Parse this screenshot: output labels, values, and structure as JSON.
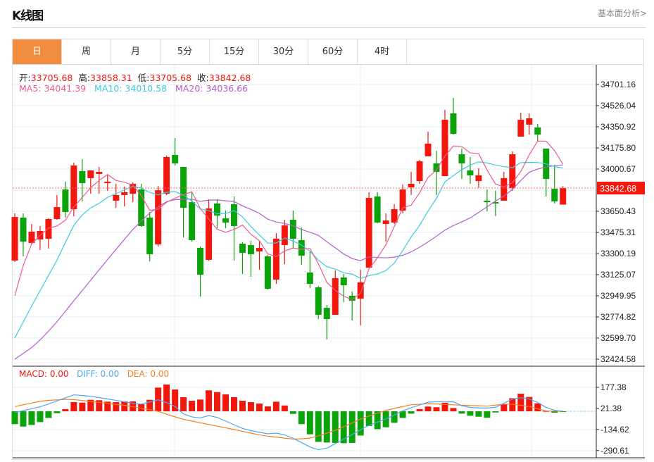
{
  "header": {
    "title": "K线图",
    "link": "基本面分析>"
  },
  "tabs": [
    "日",
    "周",
    "月",
    "5分",
    "15分",
    "30分",
    "60分",
    "4时"
  ],
  "active_tab": 0,
  "legend": {
    "open_label": "开:",
    "open": "33705.68",
    "high_label": "高:",
    "high": "33858.31",
    "low_label": "低:",
    "low": "33705.68",
    "close_label": "收:",
    "close": "33842.68",
    "ma5": "MA5: 34041.39",
    "ma10": "MA10: 34010.58",
    "ma20": "MA20: 34036.66",
    "macd": "MACD: 0.00",
    "diff": "DIFF: 0.00",
    "dea": "DEA: 0.00"
  },
  "colors": {
    "up": "#f2160c",
    "down": "#0aa30a",
    "ma5": "#ef5a8d",
    "ma10": "#3fc9e0",
    "ma20": "#b35fc9",
    "diff": "#4ea5ef",
    "dea": "#f57f1f",
    "accent": "#f28c3f"
  },
  "chart_data": [
    {
      "type": "candlestick",
      "title": "K线图",
      "current_price": "33842.68",
      "y_ticks": [
        "34701.16",
        "34526.04",
        "34350.92",
        "34175.80",
        "34000.67",
        "33650.43",
        "33475.31",
        "33300.19",
        "33125.07",
        "32949.95",
        "32774.82",
        "32599.70",
        "32424.58"
      ],
      "ylim": [
        32424.58,
        34701.16
      ],
      "ohlc": [
        [
          33242,
          33633,
          33230,
          33603
        ],
        [
          33598,
          33633,
          33277,
          33399
        ],
        [
          33388,
          33545,
          33376,
          33481
        ],
        [
          33417,
          33528,
          33329,
          33487
        ],
        [
          33423,
          33592,
          33341,
          33586
        ],
        [
          33586,
          33784,
          33580,
          33685
        ],
        [
          33831,
          33896,
          33598,
          33644
        ],
        [
          33668,
          34053,
          33609,
          34030
        ],
        [
          33983,
          34082,
          33732,
          33884
        ],
        [
          33925,
          33989,
          33796,
          33989
        ],
        [
          33960,
          34018,
          33796,
          33977
        ],
        [
          33884,
          33954,
          33820,
          33896
        ],
        [
          33738,
          33878,
          33679,
          33785
        ],
        [
          33785,
          33855,
          33691,
          33808
        ],
        [
          33796,
          33890,
          33726,
          33878
        ],
        [
          33831,
          33878,
          33522,
          33528
        ],
        [
          33598,
          33644,
          33236,
          33294
        ],
        [
          33376,
          33860,
          33358,
          33825
        ],
        [
          33796,
          34112,
          33784,
          34100
        ],
        [
          34117,
          34257,
          34030,
          34047
        ],
        [
          34018,
          34018,
          33434,
          33679
        ],
        [
          33726,
          33808,
          33399,
          33411
        ],
        [
          33347,
          33358,
          32944,
          33125
        ],
        [
          33248,
          33750,
          33240,
          33674
        ],
        [
          33715,
          33750,
          33510,
          33615
        ],
        [
          33592,
          33656,
          33510,
          33557
        ],
        [
          33709,
          33773,
          33242,
          33528
        ],
        [
          33382,
          33393,
          33131,
          33306
        ],
        [
          33370,
          33405,
          33107,
          33294
        ],
        [
          33317,
          33405,
          33166,
          33347
        ],
        [
          33277,
          33288,
          33002,
          33008
        ],
        [
          33084,
          33469,
          33049,
          33423
        ],
        [
          33370,
          33580,
          33212,
          33533
        ],
        [
          33580,
          33656,
          33341,
          33423
        ],
        [
          33411,
          33516,
          33206,
          33283
        ],
        [
          33143,
          33317,
          33014,
          33049
        ],
        [
          33020,
          33032,
          32757,
          32792
        ],
        [
          32850,
          32874,
          32588,
          32757
        ],
        [
          32792,
          33160,
          32792,
          33096
        ],
        [
          33102,
          33131,
          32897,
          33037
        ],
        [
          32950,
          32985,
          32746,
          32909
        ],
        [
          32926,
          33166,
          32705,
          33061
        ],
        [
          33183,
          33808,
          33183,
          33761
        ],
        [
          33773,
          33808,
          33551,
          33557
        ],
        [
          33545,
          33633,
          33399,
          33574
        ],
        [
          33557,
          33709,
          33545,
          33668
        ],
        [
          33656,
          33872,
          33633,
          33831
        ],
        [
          33849,
          33977,
          33785,
          33878
        ],
        [
          33901,
          34076,
          33878,
          34065
        ],
        [
          34106,
          34310,
          34106,
          34211
        ],
        [
          34047,
          34152,
          33785,
          33977
        ],
        [
          33942,
          34491,
          33942,
          34409
        ],
        [
          34462,
          34590,
          34286,
          34292
        ],
        [
          34123,
          34170,
          33919,
          34047
        ],
        [
          33989,
          34100,
          33878,
          33948
        ],
        [
          33901,
          34006,
          33843,
          33948
        ],
        [
          33738,
          33831,
          33650,
          33726
        ],
        [
          33726,
          33820,
          33610,
          33715
        ],
        [
          33738,
          33977,
          33738,
          33925
        ],
        [
          33843,
          34147,
          33820,
          34123
        ],
        [
          34269,
          34468,
          34269,
          34409
        ],
        [
          34368,
          34462,
          34286,
          34421
        ],
        [
          34345,
          34374,
          34234,
          34286
        ],
        [
          34170,
          34170,
          33773,
          33919
        ],
        [
          33837,
          34035,
          33715,
          33732
        ],
        [
          33705.68,
          33858.31,
          33705.68,
          33842.68
        ]
      ],
      "ma_lead_in": {
        "ma5": [
          [
            0,
            32950
          ],
          [
            1,
            33200
          ],
          [
            2,
            33380
          ],
          [
            3,
            33450
          ]
        ],
        "ma10": [
          [
            0,
            32600
          ],
          [
            2.2,
            32891
          ],
          [
            5.3,
            33283
          ],
          [
            6.8,
            33516
          ],
          [
            8,
            33620
          ]
        ],
        "ma20": [
          [
            0,
            32424
          ],
          [
            2.4,
            32540
          ],
          [
            4.6,
            32700
          ],
          [
            6.8,
            32891
          ],
          [
            10.9,
            33242
          ],
          [
            13.9,
            33493
          ],
          [
            16.2,
            33650
          ],
          [
            18,
            33730
          ]
        ]
      }
    },
    {
      "type": "macd",
      "y_ticks": [
        "177.38",
        "21.38",
        "-134.62",
        "-290.61"
      ],
      "histogram": [
        -95,
        -113,
        -101,
        -80,
        -49,
        -14,
        16,
        68,
        64,
        85,
        82,
        71,
        68,
        73,
        73,
        52,
        85,
        175,
        198,
        161,
        104,
        78,
        87,
        155,
        142,
        125,
        104,
        78,
        68,
        57,
        36,
        71,
        43,
        -19,
        -95,
        -170,
        -226,
        -231,
        -234,
        -236,
        -234,
        -179,
        -109,
        -132,
        -118,
        -85,
        -49,
        -17,
        16,
        35,
        30,
        63,
        24,
        -17,
        -33,
        -40,
        -47,
        -9,
        54,
        97,
        130,
        106,
        59,
        2,
        -10,
        -3
      ],
      "diff": [
        [
          0,
          -10
        ],
        [
          3.3,
          38
        ],
        [
          7,
          122
        ],
        [
          9,
          111
        ],
        [
          12.3,
          78
        ],
        [
          14.8,
          50
        ],
        [
          17,
          85
        ],
        [
          18.8,
          47
        ],
        [
          20.3,
          -36
        ],
        [
          22,
          -49
        ],
        [
          23.3,
          -26
        ],
        [
          27.3,
          -135
        ],
        [
          30.3,
          -170
        ],
        [
          31.3,
          -158
        ],
        [
          32.8,
          -193
        ],
        [
          35.6,
          -283
        ],
        [
          36.6,
          -286
        ],
        [
          39.3,
          -196
        ],
        [
          41.8,
          -109
        ],
        [
          44.3,
          -49
        ],
        [
          46.3,
          12
        ],
        [
          49.3,
          73
        ],
        [
          51.3,
          68
        ],
        [
          51.6,
          82
        ],
        [
          53.3,
          33
        ],
        [
          54.8,
          24
        ],
        [
          56.8,
          24
        ],
        [
          59.3,
          99
        ],
        [
          60.6,
          102
        ],
        [
          62.4,
          55
        ],
        [
          63.4,
          12
        ],
        [
          65,
          0
        ]
      ],
      "dea": [
        [
          0,
          35
        ],
        [
          3.3,
          78
        ],
        [
          6.5,
          90
        ],
        [
          10.3,
          64
        ],
        [
          13.3,
          42
        ],
        [
          16.8,
          3
        ],
        [
          19.8,
          -57
        ],
        [
          22.8,
          -95
        ],
        [
          25.8,
          -132
        ],
        [
          29.3,
          -179
        ],
        [
          33.3,
          -208
        ],
        [
          35.3,
          -196
        ],
        [
          38.3,
          -135
        ],
        [
          41.3,
          -49
        ],
        [
          44.3,
          12
        ],
        [
          47.1,
          50
        ],
        [
          49.3,
          56
        ],
        [
          52.3,
          47
        ],
        [
          55.9,
          38
        ],
        [
          58.4,
          56
        ],
        [
          60.9,
          38
        ],
        [
          62.9,
          3
        ],
        [
          65,
          0
        ]
      ]
    }
  ]
}
